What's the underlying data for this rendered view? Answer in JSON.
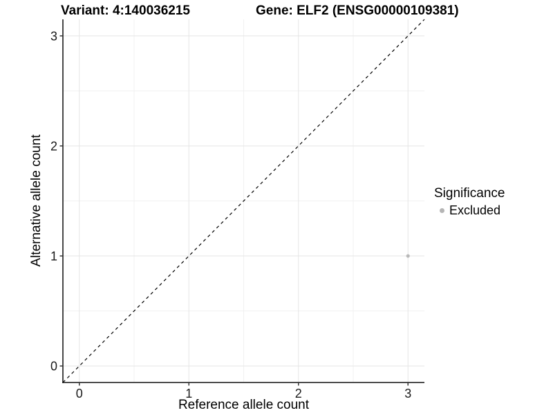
{
  "title": {
    "variant": "Variant: 4:140036215",
    "gene": "Gene: ELF2 (ENSG00000109381)"
  },
  "chart_data": {
    "type": "scatter",
    "xlabel": "Reference allele count",
    "ylabel": "Alternative allele count",
    "xlim": [
      -0.15,
      3.15
    ],
    "ylim": [
      -0.15,
      3.15
    ],
    "x_ticks": [
      0,
      1,
      2,
      3
    ],
    "y_ticks": [
      0,
      1,
      2,
      3
    ],
    "x_minor": [
      0.5,
      1.5,
      2.5
    ],
    "y_minor": [
      0.5,
      1.5,
      2.5
    ],
    "grid": true,
    "points": [
      {
        "x": 3,
        "y": 1,
        "series": "Excluded"
      }
    ],
    "reference_line": {
      "style": "dashed",
      "from": [
        -0.15,
        -0.15
      ],
      "to": [
        3.15,
        3.15
      ],
      "color": "#000000"
    },
    "legend": {
      "title": "Significance",
      "position": "right",
      "entries": [
        {
          "label": "Excluded",
          "color": "#b5b5b5"
        }
      ]
    }
  },
  "colors": {
    "background": "#ffffff",
    "grid_major": "#e5e5e5",
    "grid_minor": "#f1f1f1",
    "axis_line": "#333333",
    "tick_text": "#1a1a1a",
    "point": "#b9b9b9",
    "dashed_line": "#000000"
  }
}
